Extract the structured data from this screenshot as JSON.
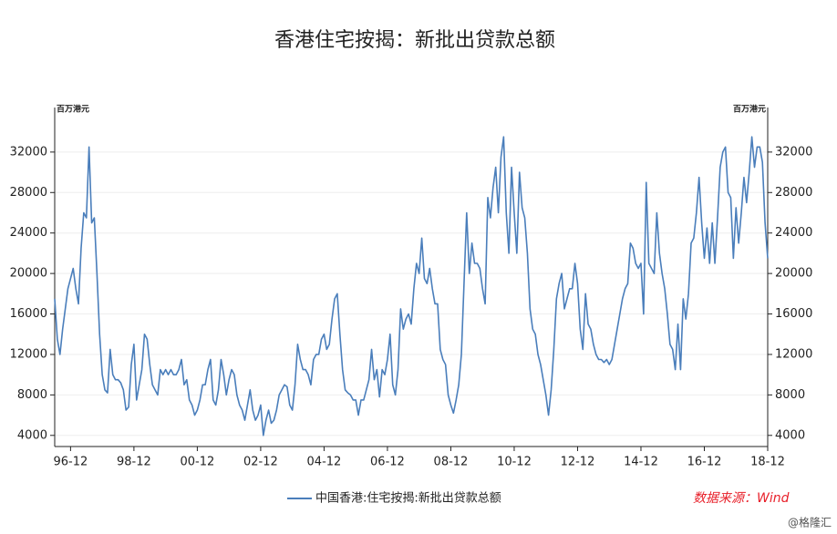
{
  "chart_data": {
    "type": "line",
    "title": "香港住宅按揭：新批出贷款总额",
    "y_unit": "百万港元",
    "y2_unit": "百万港元",
    "source": "数据来源：Wind",
    "watermark": "@格隆汇",
    "categories": [
      null,
      null,
      null,
      null,
      null,
      null,
      "96-12",
      null,
      null,
      null,
      null,
      null,
      null,
      null,
      null,
      null,
      null,
      null,
      null,
      null,
      null,
      null,
      null,
      null,
      null,
      null,
      null,
      null,
      null,
      null,
      "98-12",
      null,
      null,
      null,
      null,
      null,
      null,
      null,
      null,
      null,
      null,
      null,
      null,
      null,
      null,
      null,
      null,
      null,
      null,
      null,
      null,
      null,
      null,
      null,
      "00-12",
      null,
      null,
      null,
      null,
      null,
      null,
      null,
      null,
      null,
      null,
      null,
      null,
      null,
      null,
      null,
      null,
      null,
      null,
      null,
      null,
      null,
      null,
      null,
      "02-12",
      null,
      null,
      null,
      null,
      null,
      null,
      null,
      null,
      null,
      null,
      null,
      null,
      null,
      null,
      null,
      null,
      null,
      null,
      null,
      null,
      null,
      null,
      null,
      "04-12",
      null,
      null,
      null,
      null,
      null,
      null,
      null,
      null,
      null,
      null,
      null,
      null,
      null,
      null,
      null,
      null,
      null,
      null,
      null,
      null,
      null,
      null,
      null,
      "06-12",
      null,
      null,
      null,
      null,
      null,
      null,
      null,
      null,
      null,
      null,
      null,
      null,
      null,
      null,
      null,
      null,
      null,
      null,
      null,
      null,
      null,
      null,
      null,
      "08-12",
      null,
      null,
      null,
      null,
      null,
      null,
      null,
      null,
      null,
      null,
      null,
      null,
      null,
      null,
      null,
      null,
      null,
      null,
      null,
      null,
      null,
      null,
      null,
      "10-12",
      null,
      null,
      null,
      null,
      null,
      null,
      null,
      null,
      null,
      null,
      null,
      null,
      null,
      null,
      null,
      null,
      null,
      null,
      null,
      null,
      null,
      null,
      null,
      "12-12",
      null,
      null,
      null,
      null,
      null,
      null,
      null,
      null,
      null,
      null,
      null,
      null,
      null,
      null,
      null,
      null,
      null,
      null,
      null,
      null,
      null,
      null,
      null,
      "14-12",
      null,
      null,
      null,
      null,
      null,
      null,
      null,
      null,
      null,
      null,
      null,
      null,
      null,
      null,
      null,
      null,
      null,
      null,
      null,
      null,
      null,
      null,
      null,
      "16-12",
      null,
      null,
      null,
      null,
      null,
      null,
      null,
      null,
      null,
      null,
      null,
      null,
      null,
      null,
      null,
      null,
      null,
      null,
      null,
      null,
      null,
      null,
      null,
      "18-12"
    ],
    "series": [
      {
        "name": "中国香港:住宅按揭:新批出贷款总额",
        "color": "#4a7ebb",
        "axis": "y",
        "values": [
          17500,
          13500,
          12000,
          14500,
          16500,
          18500,
          19500,
          20500,
          18500,
          17000,
          22500,
          26000,
          25500,
          32500,
          25000,
          25500,
          20000,
          14000,
          10000,
          8500,
          8200,
          12500,
          10000,
          9500,
          9500,
          9200,
          8500,
          6500,
          6800,
          11000,
          13000,
          7500,
          9000,
          10500,
          14000,
          13500,
          11000,
          9000,
          8500,
          8000,
          10500,
          10000,
          10500,
          10000,
          10500,
          10000,
          10000,
          10500,
          11500,
          9000,
          9500,
          7500,
          7000,
          6000,
          6500,
          7500,
          9000,
          9000,
          10500,
          11500,
          7500,
          7000,
          8500,
          11500,
          10000,
          8000,
          9500,
          10500,
          10000,
          8000,
          7000,
          6500,
          5500,
          7000,
          8500,
          6500,
          5500,
          6000,
          7000,
          4000,
          5500,
          6500,
          5200,
          5500,
          6500,
          8000,
          8500,
          9000,
          8800,
          7000,
          6500,
          9000,
          13000,
          11500,
          10500,
          10500,
          10000,
          9000,
          11500,
          12000,
          12000,
          13500,
          14000,
          12500,
          13000,
          15500,
          17500,
          18000,
          14000,
          10500,
          8500,
          8200,
          8000,
          7500,
          7500,
          6000,
          7500,
          7500,
          8500,
          9500,
          12500,
          9500,
          10500,
          7800,
          10500,
          10000,
          11500,
          14000,
          9000,
          8000,
          10500,
          16500,
          14500,
          15500,
          16000,
          15000,
          18500,
          21000,
          20000,
          23500,
          19500,
          19000,
          20500,
          18500,
          17000,
          17000,
          12500,
          11500,
          11000,
          8000,
          7000,
          6200,
          7500,
          9000,
          12000,
          19000,
          26000,
          20000,
          23000,
          21000,
          21000,
          20500,
          18500,
          17000,
          27500,
          25500,
          28500,
          30500,
          26000,
          31500,
          33500,
          26000,
          22000,
          30500,
          26000,
          22000,
          30000,
          26500,
          25500,
          22000,
          16500,
          14500,
          14000,
          12000,
          11000,
          9500,
          8000,
          6000,
          8500,
          12500,
          17500,
          19000,
          20000,
          16500,
          17500,
          18500,
          18500,
          21000,
          19000,
          14500,
          12500,
          18000,
          15000,
          14500,
          13000,
          12000,
          11500,
          11500,
          11200,
          11500,
          11000,
          11500,
          13000,
          14500,
          16000,
          17500,
          18500,
          19000,
          23000,
          22500,
          21000,
          20500,
          21000,
          16000,
          29000,
          21000,
          20500,
          20000,
          26000,
          22000,
          20000,
          18500,
          16000,
          13000,
          12500,
          10500,
          15000,
          10500,
          17500,
          15500,
          18000,
          23000,
          23500,
          26000,
          29500,
          25000,
          21500,
          24500,
          21000,
          25000,
          21000,
          25500,
          30500,
          32000,
          32500,
          28000,
          27500,
          21500,
          26500,
          23000,
          26000,
          29500,
          27000,
          30000,
          33500,
          30500,
          32500,
          32500,
          31000,
          25000,
          21500
        ]
      }
    ],
    "ylim": [
      2900,
      35500
    ],
    "yticks": [
      4000,
      8000,
      12000,
      16000,
      20000,
      24000,
      28000,
      32000
    ],
    "y2lim": [
      2900,
      35500
    ],
    "y2ticks": [
      4000,
      8000,
      12000,
      16000,
      20000,
      24000,
      28000,
      32000
    ],
    "grid": true
  }
}
